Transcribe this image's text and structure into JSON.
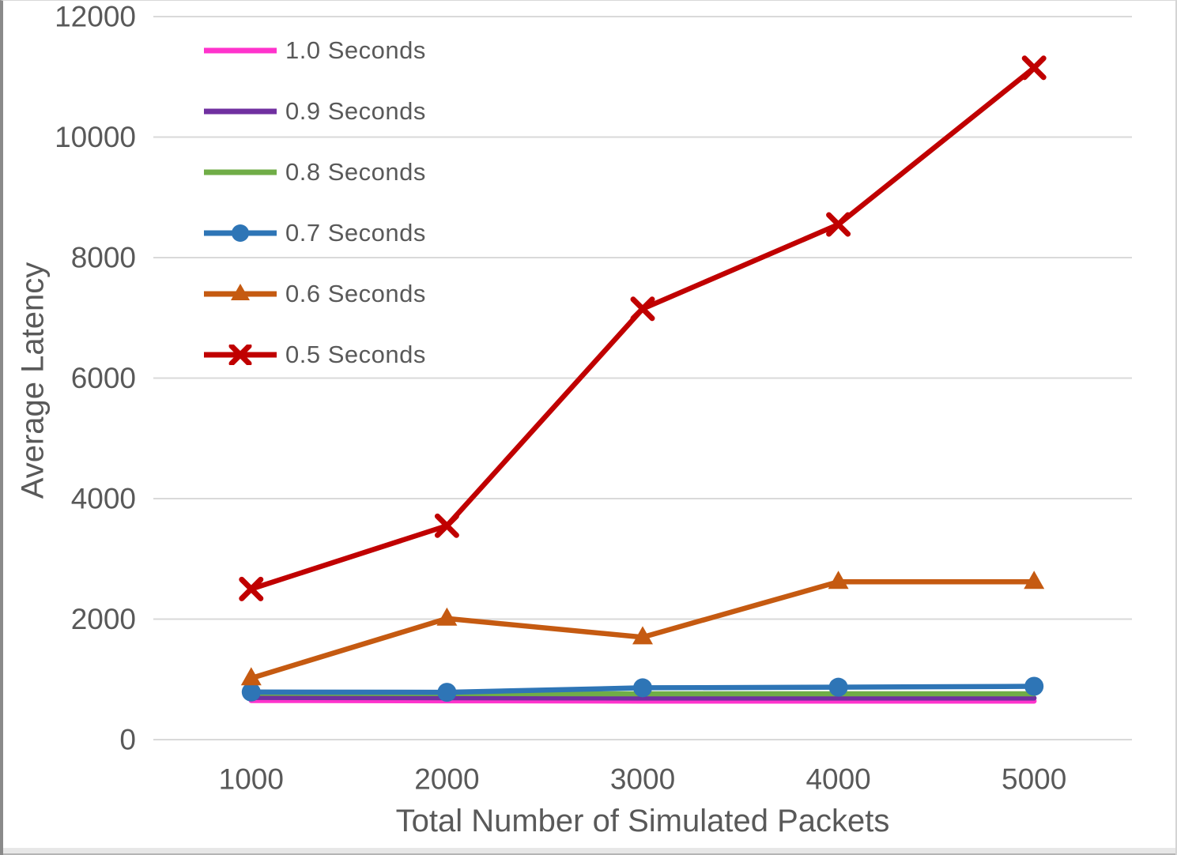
{
  "colors": {
    "text": "#595959",
    "gridline": "#D9D9D9",
    "background": "#FFFFFF"
  },
  "chart_data": {
    "type": "line",
    "title": "",
    "xlabel": "Total Number of Simulated Packets",
    "ylabel": "Average Latency",
    "categories": [
      1000,
      2000,
      3000,
      4000,
      5000
    ],
    "ylim": [
      0,
      12000
    ],
    "yticks": [
      0,
      2000,
      4000,
      6000,
      8000,
      10000,
      12000
    ],
    "grid": true,
    "legend_position": "top-left-inside",
    "series": [
      {
        "name": "1.0 Seconds",
        "color": "#FF33CC",
        "marker": "none",
        "values": [
          650,
          645,
          640,
          640,
          640
        ]
      },
      {
        "name": "0.9 Seconds",
        "color": "#7030A0",
        "marker": "none",
        "values": [
          700,
          695,
          690,
          690,
          690
        ]
      },
      {
        "name": "0.8 Seconds",
        "color": "#70AD47",
        "marker": "none",
        "values": [
          770,
          765,
          760,
          760,
          760
        ]
      },
      {
        "name": "0.7 Seconds",
        "color": "#2E75B6",
        "marker": "circle",
        "values": [
          790,
          785,
          860,
          870,
          885
        ]
      },
      {
        "name": "0.6 Seconds",
        "color": "#C55A11",
        "marker": "triangle",
        "values": [
          1020,
          2010,
          1700,
          2620,
          2620
        ]
      },
      {
        "name": "0.5 Seconds",
        "color": "#C00000",
        "marker": "x",
        "values": [
          2500,
          3550,
          7150,
          8550,
          11150
        ]
      }
    ]
  }
}
